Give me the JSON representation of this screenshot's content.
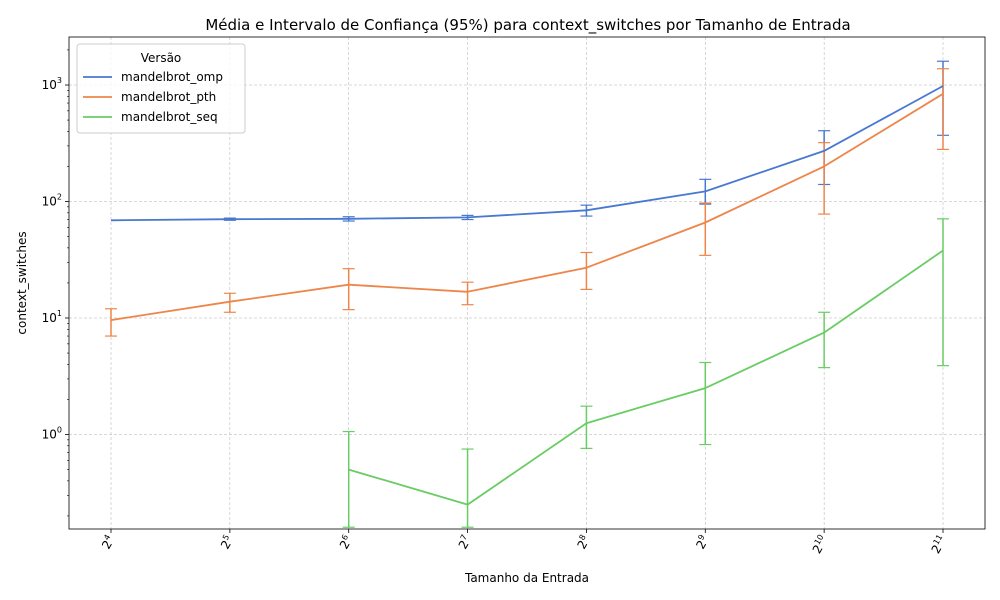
{
  "chart_data": {
    "type": "line",
    "title": "Média e Intervalo de Confiança (95%) para context_switches por Tamanho de Entrada",
    "xlabel": "Tamanho da Entrada",
    "ylabel": "context_switches",
    "yscale": "log",
    "ylim": [
      0.16,
      2400
    ],
    "grid": true,
    "legend_title": "Versão",
    "legend_position": "top-left",
    "x_ticks": [
      {
        "base": "2",
        "exp": "4"
      },
      {
        "base": "2",
        "exp": "5"
      },
      {
        "base": "2",
        "exp": "6"
      },
      {
        "base": "2",
        "exp": "7"
      },
      {
        "base": "2",
        "exp": "8"
      },
      {
        "base": "2",
        "exp": "9"
      },
      {
        "base": "2",
        "exp": "10"
      },
      {
        "base": "2",
        "exp": "11"
      }
    ],
    "y_ticks": [
      {
        "base": "10",
        "exp": "0",
        "value": 1
      },
      {
        "base": "10",
        "exp": "1",
        "value": 10
      },
      {
        "base": "10",
        "exp": "2",
        "value": 100
      },
      {
        "base": "10",
        "exp": "3",
        "value": 1000
      }
    ],
    "x": [
      16,
      32,
      64,
      128,
      256,
      512,
      1024,
      2048
    ],
    "series": [
      {
        "name": "mandelbrot_omp",
        "color": "#4878d0",
        "values": [
          69,
          70.5,
          71,
          73,
          84,
          122,
          272,
          980
        ],
        "ci_low": [
          null,
          69,
          68,
          70,
          75,
          95,
          140,
          370
        ],
        "ci_high": [
          null,
          72,
          74,
          76,
          93,
          155,
          405,
          1600
        ]
      },
      {
        "name": "mandelbrot_pth",
        "color": "#ee854a",
        "values": [
          9.6,
          13.8,
          19.3,
          16.8,
          27,
          66,
          200,
          840
        ],
        "ci_low": [
          7,
          11.2,
          11.8,
          13,
          17.6,
          34.5,
          78,
          280
        ],
        "ci_high": [
          12,
          16.3,
          26.5,
          20.3,
          36.5,
          97,
          320,
          1380
        ]
      },
      {
        "name": "mandelbrot_seq",
        "color": "#6acc64",
        "values": [
          null,
          null,
          0.5,
          0.25,
          1.25,
          2.5,
          7.5,
          38
        ],
        "ci_low": [
          null,
          null,
          0.16,
          0.16,
          0.76,
          0.82,
          3.75,
          3.9
        ],
        "ci_high": [
          null,
          null,
          1.06,
          0.75,
          1.75,
          4.15,
          11.2,
          71
        ]
      }
    ]
  }
}
